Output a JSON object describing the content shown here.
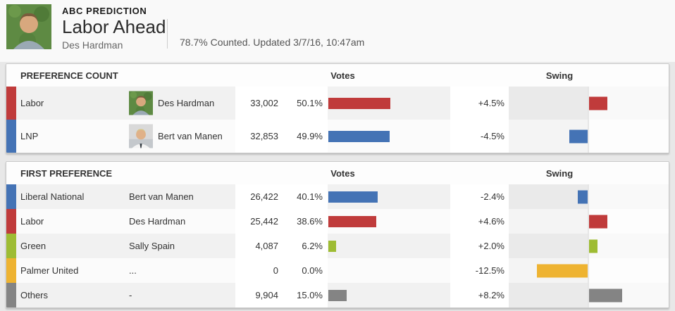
{
  "header": {
    "kicker": "ABC PREDICTION",
    "title": "Labor Ahead",
    "subtitle": "Des Hardman",
    "status": "78.7% Counted. Updated 3/7/16, 10:47am"
  },
  "colors": {
    "labor_red": "#c03b3b",
    "lnp_blue": "#4473b5",
    "green": "#9ebc33",
    "palmer_yellow": "#eeb331",
    "others_grey": "#848484",
    "page_background": "#e8e8e8"
  },
  "chart_data": [
    {
      "type": "bar",
      "title": "PREFERENCE COUNT",
      "columns": {
        "votes": "Votes",
        "swing": "Swing"
      },
      "votes_axis_max_pct": 100,
      "swing_axis_range_pct": 19.5,
      "show_photos": true,
      "rows": [
        {
          "party": "Labor",
          "candidate": "Des Hardman",
          "photo": "des",
          "color": "#c03b3b",
          "votes_label": "33,002",
          "votes": 33002,
          "pct": 50.1,
          "pct_label": "50.1%",
          "swing": 4.5,
          "swing_label": "+4.5%"
        },
        {
          "party": "LNP",
          "candidate": "Bert van Manen",
          "photo": "bert",
          "color": "#4473b5",
          "votes_label": "32,853",
          "votes": 32853,
          "pct": 49.9,
          "pct_label": "49.9%",
          "swing": -4.5,
          "swing_label": "-4.5%"
        }
      ]
    },
    {
      "type": "bar",
      "title": "FIRST PREFERENCE",
      "columns": {
        "votes": "Votes",
        "swing": "Swing"
      },
      "votes_axis_max_pct": 100,
      "swing_axis_range_pct": 19.5,
      "show_photos": false,
      "rows": [
        {
          "party": "Liberal National",
          "candidate": "Bert van Manen",
          "color": "#4473b5",
          "votes_label": "26,422",
          "votes": 26422,
          "pct": 40.1,
          "pct_label": "40.1%",
          "swing": -2.4,
          "swing_label": "-2.4%"
        },
        {
          "party": "Labor",
          "candidate": "Des Hardman",
          "color": "#c03b3b",
          "votes_label": "25,442",
          "votes": 25442,
          "pct": 38.6,
          "pct_label": "38.6%",
          "swing": 4.6,
          "swing_label": "+4.6%"
        },
        {
          "party": "Green",
          "candidate": "Sally Spain",
          "color": "#9ebc33",
          "votes_label": "4,087",
          "votes": 4087,
          "pct": 6.2,
          "pct_label": "6.2%",
          "swing": 2.0,
          "swing_label": "+2.0%"
        },
        {
          "party": "Palmer United",
          "candidate": "...",
          "color": "#eeb331",
          "votes_label": "0",
          "votes": 0,
          "pct": 0.0,
          "pct_label": "0.0%",
          "swing": -12.5,
          "swing_label": "-12.5%"
        },
        {
          "party": "Others",
          "candidate": "-",
          "color": "#848484",
          "votes_label": "9,904",
          "votes": 9904,
          "pct": 15.0,
          "pct_label": "15.0%",
          "swing": 8.2,
          "swing_label": "+8.2%"
        }
      ]
    }
  ]
}
